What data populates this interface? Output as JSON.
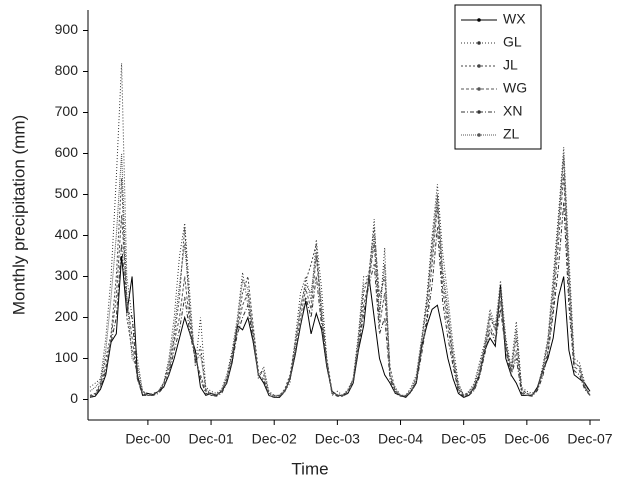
{
  "chart_data": {
    "type": "line",
    "xlabel": "Time",
    "ylabel": "Monthly precipitation (mm)",
    "categories": [
      null,
      null,
      null,
      null,
      null,
      null,
      null,
      null,
      null,
      null,
      null,
      "Dec-00",
      null,
      null,
      null,
      null,
      null,
      null,
      null,
      null,
      null,
      null,
      null,
      "Dec-01",
      null,
      null,
      null,
      null,
      null,
      null,
      null,
      null,
      null,
      null,
      null,
      "Dec-02",
      null,
      null,
      null,
      null,
      null,
      null,
      null,
      null,
      null,
      null,
      null,
      "Dec-03",
      null,
      null,
      null,
      null,
      null,
      null,
      null,
      null,
      null,
      null,
      null,
      "Dec-04",
      null,
      null,
      null,
      null,
      null,
      null,
      null,
      null,
      null,
      null,
      null,
      "Dec-05",
      null,
      null,
      null,
      null,
      null,
      null,
      null,
      null,
      null,
      null,
      null,
      "Dec-06",
      null,
      null,
      null,
      null,
      null,
      null,
      null,
      null,
      null,
      null,
      null,
      "Dec-07"
    ],
    "ylim": [
      -50,
      950
    ],
    "yticks": [
      0,
      100,
      200,
      300,
      400,
      500,
      600,
      700,
      800,
      900
    ],
    "legend": "upper right",
    "series": [
      {
        "name": "WX",
        "color": "#000000",
        "dash": "solid",
        "values": [
          5,
          8,
          25,
          60,
          140,
          160,
          350,
          210,
          300,
          60,
          10,
          15,
          12,
          20,
          30,
          60,
          100,
          150,
          200,
          160,
          120,
          30,
          10,
          15,
          10,
          20,
          40,
          90,
          180,
          170,
          200,
          140,
          60,
          40,
          10,
          5,
          5,
          20,
          50,
          110,
          180,
          240,
          160,
          210,
          170,
          80,
          20,
          10,
          10,
          15,
          40,
          120,
          180,
          300,
          200,
          100,
          60,
          40,
          15,
          10,
          5,
          20,
          40,
          130,
          180,
          220,
          230,
          170,
          100,
          50,
          15,
          5,
          10,
          30,
          60,
          120,
          150,
          130,
          280,
          100,
          60,
          40,
          10,
          10,
          10,
          30,
          70,
          100,
          150,
          250,
          300,
          120,
          60,
          50,
          40,
          20
        ]
      },
      {
        "name": "GL",
        "color": "#333333",
        "dash": "1,2",
        "values": [
          30,
          40,
          50,
          150,
          300,
          540,
          820,
          300,
          200,
          100,
          20,
          15,
          10,
          20,
          40,
          100,
          200,
          350,
          430,
          250,
          80,
          200,
          30,
          20,
          15,
          25,
          60,
          120,
          200,
          310,
          230,
          170,
          50,
          80,
          20,
          10,
          10,
          20,
          40,
          150,
          260,
          300,
          240,
          390,
          270,
          100,
          10,
          20,
          10,
          25,
          50,
          160,
          300,
          300,
          440,
          200,
          370,
          50,
          30,
          10,
          10,
          30,
          60,
          150,
          250,
          400,
          525,
          360,
          250,
          130,
          40,
          10,
          20,
          40,
          90,
          140,
          220,
          180,
          290,
          150,
          80,
          190,
          30,
          20,
          15,
          25,
          80,
          150,
          300,
          450,
          615,
          350,
          100,
          90,
          40,
          10
        ]
      },
      {
        "name": "JL",
        "color": "#444444",
        "dash": "2,2",
        "values": [
          10,
          15,
          40,
          100,
          160,
          300,
          540,
          200,
          120,
          60,
          20,
          10,
          15,
          20,
          40,
          80,
          150,
          250,
          420,
          200,
          90,
          130,
          25,
          10,
          10,
          20,
          50,
          110,
          180,
          260,
          300,
          180,
          70,
          60,
          15,
          10,
          10,
          25,
          60,
          140,
          220,
          290,
          330,
          380,
          200,
          100,
          20,
          10,
          10,
          20,
          50,
          140,
          260,
          310,
          420,
          250,
          300,
          80,
          20,
          10,
          10,
          20,
          50,
          140,
          230,
          380,
          500,
          300,
          200,
          100,
          30,
          10,
          15,
          30,
          70,
          130,
          200,
          170,
          260,
          140,
          70,
          150,
          25,
          15,
          10,
          25,
          70,
          140,
          260,
          420,
          590,
          300,
          90,
          80,
          30,
          10
        ]
      },
      {
        "name": "WG",
        "color": "#555555",
        "dash": "3,2",
        "values": [
          8,
          12,
          35,
          80,
          150,
          250,
          450,
          250,
          150,
          50,
          15,
          10,
          10,
          20,
          35,
          70,
          140,
          200,
          300,
          180,
          100,
          60,
          20,
          10,
          10,
          20,
          45,
          100,
          170,
          230,
          260,
          150,
          60,
          50,
          10,
          5,
          8,
          20,
          55,
          120,
          200,
          270,
          220,
          350,
          200,
          90,
          15,
          10,
          8,
          20,
          45,
          130,
          230,
          290,
          380,
          180,
          260,
          60,
          20,
          10,
          8,
          20,
          45,
          120,
          200,
          330,
          470,
          270,
          180,
          90,
          25,
          8,
          12,
          25,
          60,
          120,
          180,
          150,
          240,
          130,
          60,
          120,
          20,
          10,
          10,
          25,
          60,
          120,
          230,
          380,
          550,
          260,
          80,
          70,
          30,
          10
        ]
      },
      {
        "name": "XN",
        "color": "#333333",
        "dash": "4,2,1,2",
        "values": [
          5,
          10,
          30,
          70,
          140,
          200,
          380,
          220,
          200,
          50,
          10,
          10,
          10,
          15,
          30,
          60,
          120,
          170,
          250,
          160,
          100,
          50,
          15,
          10,
          8,
          15,
          40,
          90,
          160,
          200,
          230,
          140,
          60,
          45,
          10,
          5,
          6,
          18,
          50,
          110,
          180,
          250,
          200,
          300,
          180,
          80,
          15,
          8,
          8,
          15,
          40,
          120,
          210,
          280,
          330,
          160,
          200,
          50,
          15,
          8,
          6,
          18,
          40,
          110,
          190,
          280,
          420,
          240,
          150,
          80,
          20,
          6,
          10,
          22,
          55,
          110,
          170,
          140,
          220,
          120,
          60,
          100,
          15,
          10,
          8,
          22,
          55,
          110,
          210,
          320,
          480,
          230,
          70,
          60,
          25,
          10
        ]
      },
      {
        "name": "ZL",
        "color": "#555555",
        "dash": "1,1",
        "values": [
          20,
          30,
          45,
          120,
          250,
          400,
          600,
          250,
          100,
          80,
          20,
          10,
          12,
          20,
          40,
          90,
          170,
          280,
          380,
          220,
          90,
          110,
          25,
          15,
          12,
          22,
          55,
          110,
          190,
          290,
          270,
          160,
          60,
          70,
          15,
          8,
          10,
          22,
          50,
          130,
          230,
          280,
          260,
          360,
          230,
          90,
          15,
          12,
          10,
          22,
          50,
          150,
          280,
          290,
          400,
          210,
          330,
          60,
          25,
          10,
          8,
          25,
          55,
          140,
          240,
          360,
          490,
          320,
          220,
          110,
          35,
          10,
          18,
          35,
          80,
          130,
          210,
          170,
          270,
          140,
          70,
          170,
          25,
          15,
          12,
          25,
          75,
          140,
          280,
          430,
          600,
          320,
          90,
          80,
          35,
          10
        ]
      }
    ]
  }
}
